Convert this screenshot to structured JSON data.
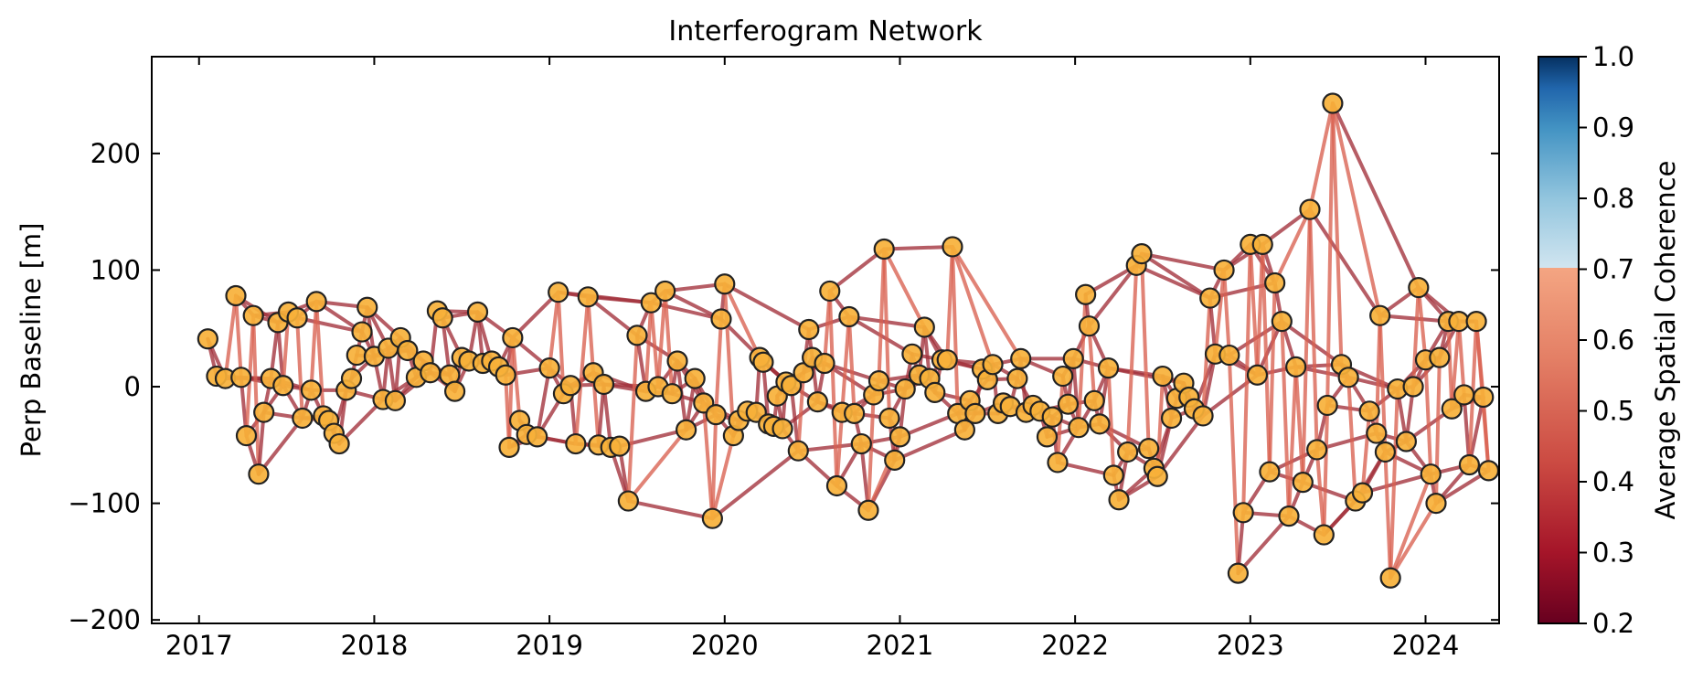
{
  "chart_data": {
    "type": "scatter",
    "title": "Interferogram Network",
    "xlabel": "",
    "ylabel": "Perp Baseline [m]",
    "x_unit": "year",
    "xlim": [
      2016.73,
      2024.42
    ],
    "ylim": [
      -203,
      283
    ],
    "xticks": [
      2017,
      2018,
      2019,
      2020,
      2021,
      2022,
      2023,
      2024
    ],
    "yticks": [
      -200,
      -100,
      0,
      100,
      200
    ],
    "ytick_labels": [
      "−200",
      "−100",
      "0",
      "100",
      "200"
    ],
    "grid": false,
    "colorbar": {
      "label": "Average Spatial Coherence",
      "range": [
        0.2,
        1.0
      ],
      "ticks": [
        0.2,
        0.3,
        0.4,
        0.5,
        0.6,
        0.7,
        0.8,
        0.9,
        1.0
      ],
      "tick_labels": [
        "0.2",
        "0.3",
        "0.4",
        "0.5",
        "0.6",
        "0.7",
        "0.8",
        "0.9",
        "1.0"
      ],
      "masked_above": 0.7
    },
    "colors": {
      "point_fill": "#f7b13a",
      "point_edge": "#222222",
      "edge_color": "#a1303a",
      "edge_color_light": "#d8604f"
    },
    "acquisitions": [
      [
        2017.05,
        41
      ],
      [
        2017.1,
        9
      ],
      [
        2017.15,
        7
      ],
      [
        2017.21,
        78
      ],
      [
        2017.24,
        8
      ],
      [
        2017.27,
        -42
      ],
      [
        2017.31,
        61
      ],
      [
        2017.34,
        -75
      ],
      [
        2017.37,
        -22
      ],
      [
        2017.41,
        7
      ],
      [
        2017.45,
        55
      ],
      [
        2017.48,
        1
      ],
      [
        2017.51,
        64
      ],
      [
        2017.56,
        59
      ],
      [
        2017.59,
        -27
      ],
      [
        2017.64,
        -3
      ],
      [
        2017.67,
        73
      ],
      [
        2017.71,
        -25
      ],
      [
        2017.74,
        -29
      ],
      [
        2017.77,
        -40
      ],
      [
        2017.8,
        -49
      ],
      [
        2017.84,
        -3
      ],
      [
        2017.87,
        7
      ],
      [
        2017.9,
        27
      ],
      [
        2017.93,
        47
      ],
      [
        2017.96,
        68
      ],
      [
        2018.0,
        26
      ],
      [
        2018.05,
        -11
      ],
      [
        2018.08,
        33
      ],
      [
        2018.12,
        -12
      ],
      [
        2018.15,
        42
      ],
      [
        2018.19,
        31
      ],
      [
        2018.24,
        8
      ],
      [
        2018.28,
        22
      ],
      [
        2018.32,
        12
      ],
      [
        2018.36,
        65
      ],
      [
        2018.39,
        59
      ],
      [
        2018.43,
        10
      ],
      [
        2018.46,
        -4
      ],
      [
        2018.5,
        25
      ],
      [
        2018.54,
        22
      ],
      [
        2018.59,
        64
      ],
      [
        2018.62,
        20
      ],
      [
        2018.67,
        22
      ],
      [
        2018.71,
        17
      ],
      [
        2018.75,
        10
      ],
      [
        2018.79,
        42
      ],
      [
        2018.83,
        -29
      ],
      [
        2018.87,
        -41
      ],
      [
        2018.93,
        -43
      ],
      [
        2018.77,
        -52
      ],
      [
        2019.0,
        16
      ],
      [
        2019.05,
        81
      ],
      [
        2019.08,
        -6
      ],
      [
        2019.12,
        1
      ],
      [
        2019.15,
        -49
      ],
      [
        2019.22,
        77
      ],
      [
        2019.25,
        12
      ],
      [
        2019.28,
        -50
      ],
      [
        2019.31,
        2
      ],
      [
        2019.35,
        -52
      ],
      [
        2019.4,
        -51
      ],
      [
        2019.45,
        -98
      ],
      [
        2019.5,
        44
      ],
      [
        2019.55,
        -4
      ],
      [
        2019.58,
        72
      ],
      [
        2019.62,
        0
      ],
      [
        2019.66,
        82
      ],
      [
        2019.7,
        -6
      ],
      [
        2019.73,
        22
      ],
      [
        2019.78,
        -37
      ],
      [
        2019.83,
        7
      ],
      [
        2019.88,
        -14
      ],
      [
        2019.93,
        -113
      ],
      [
        2019.95,
        -24
      ],
      [
        2019.98,
        58
      ],
      [
        2020.0,
        88
      ],
      [
        2020.05,
        -42
      ],
      [
        2020.08,
        -29
      ],
      [
        2020.13,
        -21
      ],
      [
        2020.18,
        -22
      ],
      [
        2020.2,
        25
      ],
      [
        2020.22,
        21
      ],
      [
        2020.25,
        -32
      ],
      [
        2020.28,
        -34
      ],
      [
        2020.3,
        -8
      ],
      [
        2020.33,
        -36
      ],
      [
        2020.35,
        4
      ],
      [
        2020.38,
        1
      ],
      [
        2020.42,
        -55
      ],
      [
        2020.45,
        12
      ],
      [
        2020.48,
        49
      ],
      [
        2020.5,
        25
      ],
      [
        2020.53,
        -13
      ],
      [
        2020.57,
        20
      ],
      [
        2020.6,
        82
      ],
      [
        2020.64,
        -85
      ],
      [
        2020.67,
        -22
      ],
      [
        2020.71,
        60
      ],
      [
        2020.74,
        -23
      ],
      [
        2020.78,
        -49
      ],
      [
        2020.82,
        -106
      ],
      [
        2020.85,
        -7
      ],
      [
        2020.88,
        5
      ],
      [
        2020.91,
        118
      ],
      [
        2020.94,
        -27
      ],
      [
        2020.97,
        -63
      ],
      [
        2021.0,
        -43
      ],
      [
        2021.03,
        -2
      ],
      [
        2021.07,
        28
      ],
      [
        2021.11,
        10
      ],
      [
        2021.14,
        51
      ],
      [
        2021.17,
        7
      ],
      [
        2021.2,
        -5
      ],
      [
        2021.24,
        23
      ],
      [
        2021.27,
        23
      ],
      [
        2021.3,
        120
      ],
      [
        2021.33,
        -23
      ],
      [
        2021.37,
        -37
      ],
      [
        2021.4,
        -12
      ],
      [
        2021.43,
        -23
      ],
      [
        2021.47,
        15
      ],
      [
        2021.5,
        6
      ],
      [
        2021.53,
        19
      ],
      [
        2021.56,
        -23
      ],
      [
        2021.59,
        -14
      ],
      [
        2021.63,
        -17
      ],
      [
        2021.67,
        7
      ],
      [
        2021.69,
        24
      ],
      [
        2021.72,
        -22
      ],
      [
        2021.76,
        -16
      ],
      [
        2021.8,
        -21
      ],
      [
        2021.84,
        -43
      ],
      [
        2021.87,
        -26
      ],
      [
        2021.9,
        -65
      ],
      [
        2021.93,
        9
      ],
      [
        2021.96,
        -15
      ],
      [
        2021.99,
        24
      ],
      [
        2022.02,
        -35
      ],
      [
        2022.06,
        79
      ],
      [
        2022.08,
        52
      ],
      [
        2022.11,
        -12
      ],
      [
        2022.14,
        -32
      ],
      [
        2022.19,
        16
      ],
      [
        2022.22,
        -76
      ],
      [
        2022.25,
        -97
      ],
      [
        2022.3,
        -56
      ],
      [
        2022.35,
        104
      ],
      [
        2022.38,
        114
      ],
      [
        2022.42,
        -53
      ],
      [
        2022.45,
        -70
      ],
      [
        2022.47,
        -77
      ],
      [
        2022.5,
        9
      ],
      [
        2022.55,
        -27
      ],
      [
        2022.58,
        -10
      ],
      [
        2022.62,
        3
      ],
      [
        2022.65,
        -9
      ],
      [
        2022.68,
        -19
      ],
      [
        2022.73,
        -25
      ],
      [
        2022.77,
        76
      ],
      [
        2022.8,
        28
      ],
      [
        2022.85,
        100
      ],
      [
        2022.88,
        27
      ],
      [
        2022.93,
        -160
      ],
      [
        2022.96,
        -108
      ],
      [
        2023.0,
        122
      ],
      [
        2023.04,
        10
      ],
      [
        2023.07,
        122
      ],
      [
        2023.11,
        -73
      ],
      [
        2023.14,
        89
      ],
      [
        2023.18,
        56
      ],
      [
        2023.22,
        -111
      ],
      [
        2023.26,
        17
      ],
      [
        2023.3,
        -82
      ],
      [
        2023.34,
        152
      ],
      [
        2023.38,
        -54
      ],
      [
        2023.42,
        -127
      ],
      [
        2023.44,
        -16
      ],
      [
        2023.47,
        243
      ],
      [
        2023.52,
        19
      ],
      [
        2023.56,
        8
      ],
      [
        2023.6,
        -98
      ],
      [
        2023.64,
        -91
      ],
      [
        2023.68,
        -21
      ],
      [
        2023.72,
        -40
      ],
      [
        2023.74,
        61
      ],
      [
        2023.77,
        -56
      ],
      [
        2023.8,
        -164
      ],
      [
        2023.84,
        -2
      ],
      [
        2023.89,
        -47
      ],
      [
        2023.93,
        0
      ],
      [
        2023.96,
        85
      ],
      [
        2024.0,
        23
      ],
      [
        2024.03,
        -75
      ],
      [
        2024.06,
        -100
      ],
      [
        2024.08,
        25
      ],
      [
        2024.13,
        56
      ],
      [
        2024.15,
        -19
      ],
      [
        2024.19,
        56
      ],
      [
        2024.22,
        -7
      ],
      [
        2024.25,
        -67
      ],
      [
        2024.29,
        56
      ],
      [
        2024.33,
        -9
      ],
      [
        2024.36,
        -72
      ]
    ]
  }
}
